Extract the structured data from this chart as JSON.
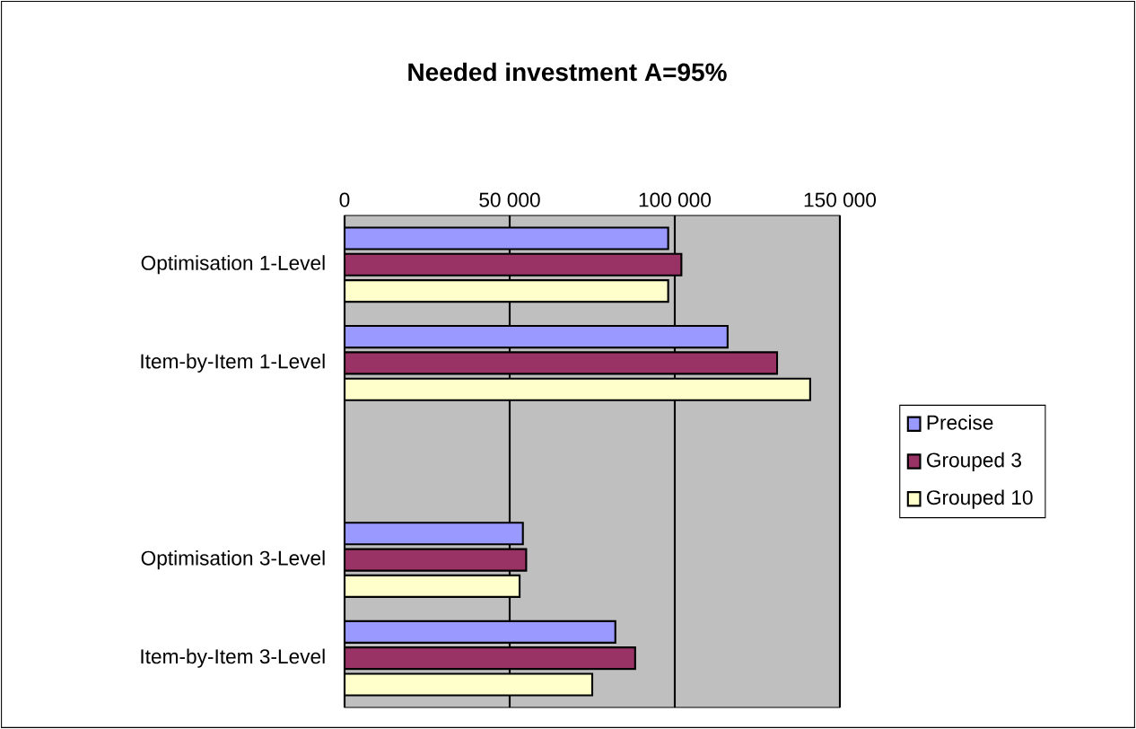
{
  "chart_data": {
    "type": "bar",
    "orientation": "horizontal",
    "title": "Needed investment A=95%",
    "categories": [
      "Optimisation 1-Level",
      "Item-by-Item 1-Level",
      null,
      "Optimisation 3-Level",
      "Item-by-Item 3-Level"
    ],
    "series": [
      {
        "name": "Precise",
        "color": "#9999ff",
        "values": [
          98000,
          116000,
          null,
          54000,
          82000
        ]
      },
      {
        "name": "Grouped 3",
        "color": "#993366",
        "values": [
          102000,
          131000,
          null,
          55000,
          88000
        ]
      },
      {
        "name": "Grouped 10",
        "color": "#ffffcc",
        "values": [
          98000,
          141000,
          null,
          53000,
          75000
        ]
      }
    ],
    "xlim": [
      0,
      150000
    ],
    "xticks": [
      0,
      {
        "value": 50000,
        "label": "50 000"
      },
      {
        "value": 100000,
        "label": "100 000"
      },
      {
        "value": 150000,
        "label": "150 000"
      }
    ],
    "grid": "x",
    "legend": "right"
  }
}
